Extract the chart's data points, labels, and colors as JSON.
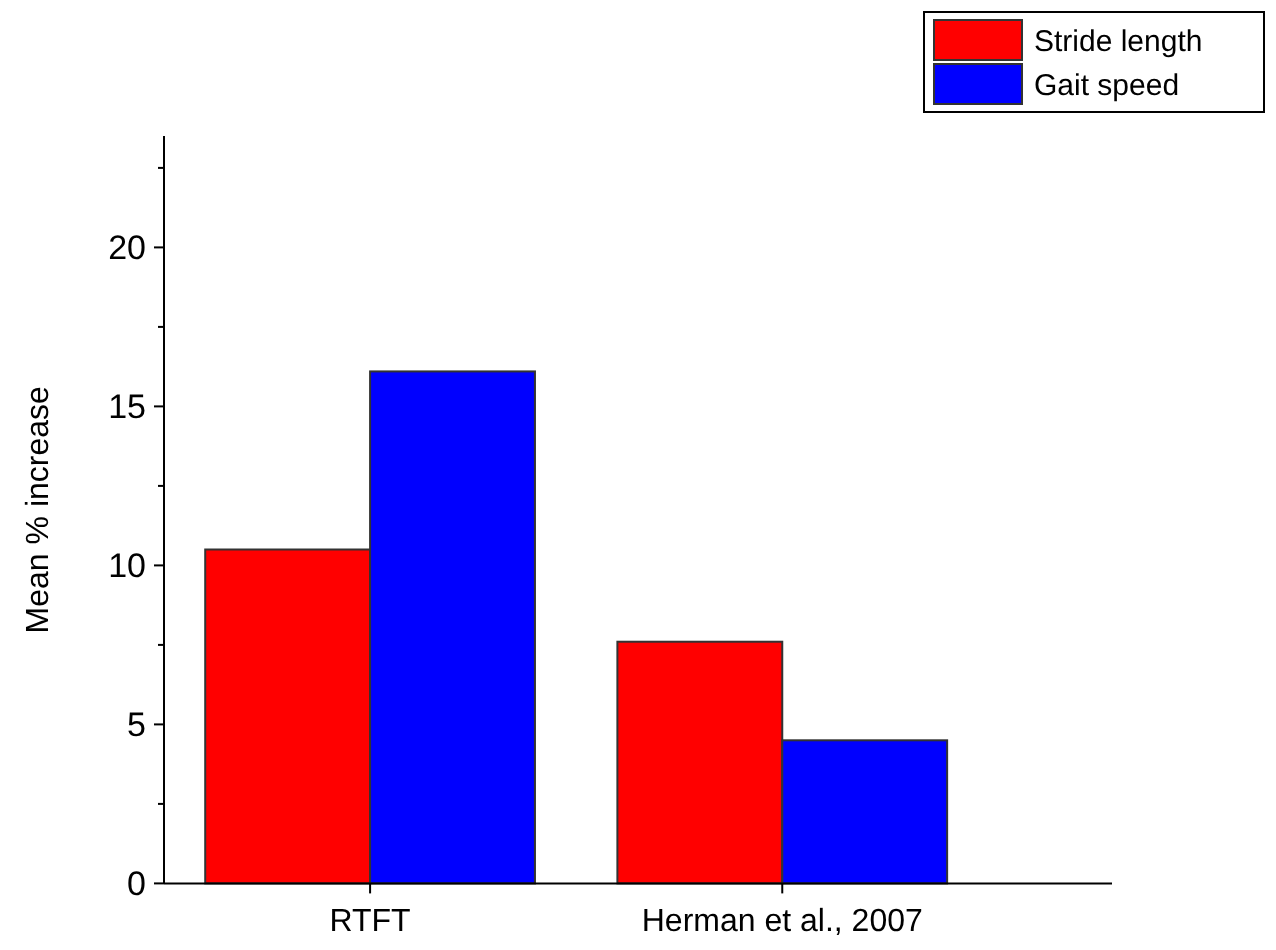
{
  "chart_data": {
    "type": "bar",
    "ylabel": "Mean % increase",
    "categories": [
      "RTFT",
      "Herman et al., 2007"
    ],
    "series": [
      {
        "name": "Stride length",
        "color": "#ff0000",
        "values": [
          10.5,
          7.6
        ]
      },
      {
        "name": "Gait speed",
        "color": "#0000ff",
        "values": [
          16.1,
          4.5
        ]
      }
    ],
    "ylim": [
      0,
      23.5
    ],
    "yticks": [
      0,
      {
        "value": 2.5,
        "label": null
      },
      5,
      {
        "value": 7.5,
        "label": null
      },
      10,
      {
        "value": 12.5,
        "label": null
      },
      15,
      {
        "value": 17.5,
        "label": null
      },
      20,
      {
        "value": 22.5,
        "label": null
      }
    ],
    "grid": false,
    "legend": "top right"
  }
}
